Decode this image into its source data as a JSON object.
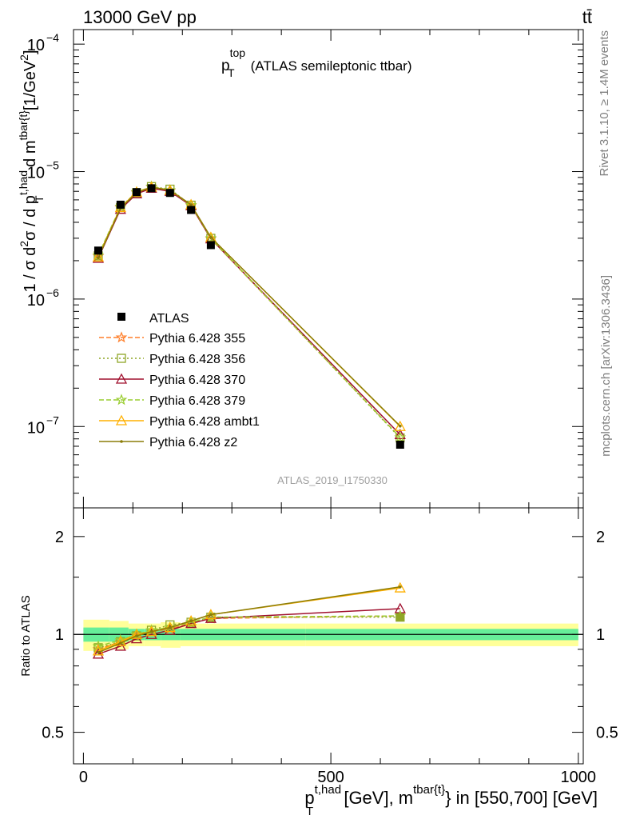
{
  "header": {
    "left": "13000 GeV pp",
    "right": "tt̄"
  },
  "title": {
    "p": "p",
    "sup": "top",
    "sub": "T",
    "rest": "(ATLAS semileptonic ttbar)"
  },
  "side_labels": {
    "rivet": "Rivet 3.1.10, ≥ 1.4M events",
    "mcplots": "mcplots.cern.ch [arXiv:1306.3436]"
  },
  "watermark": "ATLAS_2019_I1750330",
  "axis": {
    "ylabel_main": {
      "a": "1 / σ d",
      "a_sup": "2",
      "b": "σ / d p",
      "b_sup": "t,had",
      "b_sub": "T",
      "c": " d m",
      "c_sup": "tbar{t}",
      "d": "[1/GeV",
      "d_sup": "2",
      "e": "]"
    },
    "ylabel_ratio": "Ratio to ATLAS",
    "xlabel": {
      "p": "p",
      "p_sup": "t,had",
      "p_sub": "T",
      "mid": " [GeV], m",
      "m_sup": "tbar{t}",
      "end": "} in [550,700] [GeV]"
    },
    "x_ticks": [
      "0",
      "500",
      "1000"
    ],
    "main_y_ticks": [
      {
        "base": "10",
        "exp": "−7"
      },
      {
        "base": "10",
        "exp": "−6"
      },
      {
        "base": "10",
        "exp": "−5"
      },
      {
        "base": "10",
        "exp": "−4"
      }
    ],
    "ratio_y_ticks": [
      "0.5",
      "1",
      "2"
    ]
  },
  "chart_data": {
    "type": "scatter",
    "x_range": [
      -20,
      1010
    ],
    "main": {
      "yscale": "log",
      "ylim": [
        2.3e-08,
        0.00013
      ]
    },
    "ratio": {
      "yscale": "log",
      "ylim": [
        0.4,
        2.45
      ]
    },
    "x": [
      30,
      75,
      107.5,
      137.5,
      175,
      217.5,
      257.5,
      640
    ],
    "data": {
      "name": "ATLAS",
      "values": [
        2.4e-06,
        5.5e-06,
        6.9e-06,
        7.4e-06,
        6.8e-06,
        5e-06,
        2.65e-06,
        7.2e-08
      ],
      "band_inner": [
        0.05,
        0.05,
        0.04,
        0.04,
        0.04,
        0.04,
        0.04,
        0.04
      ],
      "band_outer": [
        0.11,
        0.1,
        0.08,
        0.08,
        0.09,
        0.08,
        0.08,
        0.08
      ]
    },
    "legend_position": "middle-left",
    "series": [
      {
        "name": "Pythia 6.428 355",
        "color": "#ff7f2a",
        "dash": "6,3",
        "marker": "star",
        "ratio": [
          0.9,
          0.95,
          0.99,
          1.02,
          1.04,
          1.08,
          1.12,
          1.14
        ]
      },
      {
        "name": "Pythia 6.428 356",
        "color": "#8fa626",
        "dash": "2,3",
        "marker": "square",
        "ratio": [
          0.91,
          0.95,
          0.99,
          1.03,
          1.07,
          1.09,
          1.13,
          1.13
        ]
      },
      {
        "name": "Pythia 6.428 370",
        "color": "#a0102e",
        "dash": "",
        "marker": "triangle",
        "ratio": [
          0.87,
          0.92,
          0.97,
          1.0,
          1.03,
          1.08,
          1.12,
          1.2
        ]
      },
      {
        "name": "Pythia 6.428 379",
        "color": "#9acd32",
        "dash": "6,3",
        "marker": "star",
        "ratio": [
          0.92,
          0.96,
          1.0,
          1.03,
          1.05,
          1.09,
          1.13,
          1.14
        ]
      },
      {
        "name": "Pythia 6.428 ambt1",
        "color": "#ffb000",
        "dash": "",
        "marker": "triangle",
        "ratio": [
          0.89,
          0.95,
          1.0,
          1.02,
          1.05,
          1.1,
          1.15,
          1.39
        ]
      },
      {
        "name": "Pythia 6.428 z2",
        "color": "#8b7d08",
        "dash": "",
        "marker": "dot",
        "ratio": [
          0.88,
          0.94,
          0.99,
          1.02,
          1.05,
          1.1,
          1.15,
          1.4
        ]
      }
    ]
  }
}
